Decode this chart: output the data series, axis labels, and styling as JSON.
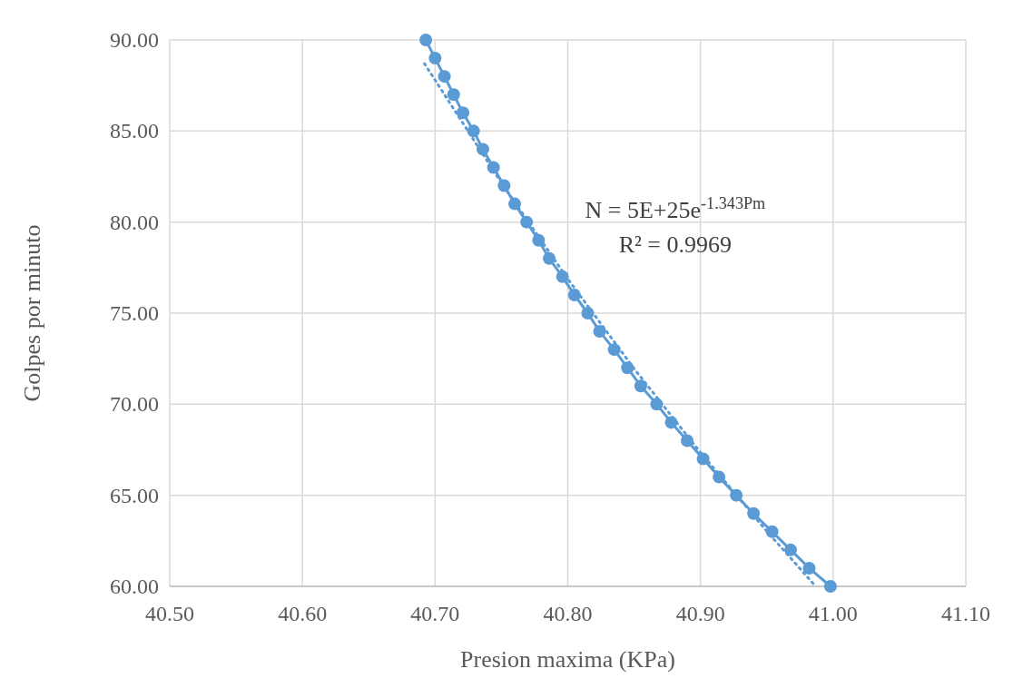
{
  "chart_data": {
    "type": "line",
    "xlabel": "Presion maxima (KPa)",
    "ylabel": "Golpes por minuto",
    "xlim": [
      40.5,
      41.1
    ],
    "xticks": [
      {
        "value": 40.5,
        "label": "40.50"
      },
      {
        "value": 40.6,
        "label": "40.60"
      },
      {
        "value": 40.7,
        "label": "40.70"
      },
      {
        "value": 40.8,
        "label": "40.80"
      },
      {
        "value": 40.9,
        "label": "40.90"
      },
      {
        "value": 41.0,
        "label": "41.00"
      },
      {
        "value": 41.1,
        "label": "41.10"
      }
    ],
    "ylim": [
      60,
      90
    ],
    "yticks": [
      {
        "value": 60,
        "label": "60.00"
      },
      {
        "value": 65,
        "label": "65.00"
      },
      {
        "value": 70,
        "label": "70.00"
      },
      {
        "value": 75,
        "label": "75.00"
      },
      {
        "value": 80,
        "label": "80.00"
      },
      {
        "value": 85,
        "label": "85.00"
      },
      {
        "value": 90,
        "label": "90.00"
      }
    ],
    "grid": true,
    "series": [
      {
        "color": "#5b9bd5",
        "marker": "circle",
        "line_style": "solid",
        "x": [
          40.693,
          40.7,
          40.707,
          40.714,
          40.721,
          40.729,
          40.736,
          40.744,
          40.752,
          40.76,
          40.769,
          40.778,
          40.786,
          40.796,
          40.805,
          40.815,
          40.824,
          40.835,
          40.845,
          40.855,
          40.867,
          40.878,
          40.89,
          40.902,
          40.914,
          40.927,
          40.94,
          40.954,
          40.968,
          40.982,
          40.998
        ],
        "values": [
          90,
          89,
          88,
          87,
          86,
          85,
          84,
          83,
          82,
          81,
          80,
          79,
          78,
          77,
          76,
          75,
          74,
          73,
          72,
          71,
          70,
          69,
          68,
          67,
          66,
          65,
          64,
          63,
          62,
          61,
          60
        ]
      },
      {
        "color": "#5b9bd5",
        "marker": "none",
        "line_style": "dotted",
        "x": [
          40.692,
          40.75,
          40.8,
          40.85,
          40.9,
          40.95,
          40.985
        ],
        "values": [
          88.7,
          82.15,
          76.88,
          71.95,
          67.35,
          63.03,
          60.15
        ]
      }
    ],
    "annotations": [
      "N = 5E+25e$^{-1.343Pm}$",
      "R² = 0.9969"
    ]
  }
}
